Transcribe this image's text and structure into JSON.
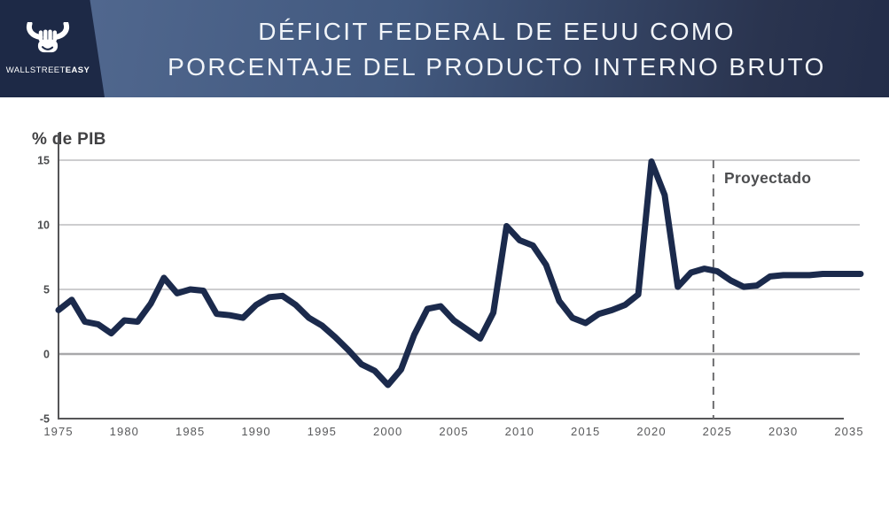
{
  "header": {
    "title_lines": [
      "DÉFICIT FEDERAL DE EEUU COMO",
      "PORCENTAJE DEL PRODUCTO INTERNO BRUTO"
    ],
    "background_gradient": [
      "#51688f",
      "#42597f",
      "#232d49"
    ],
    "text_color": "#f2f5f9",
    "logo": {
      "brand_regular": "WALLSTREET",
      "brand_bold": "EASY",
      "icon": "bull-fist-icon",
      "panel_color": "#1d2946"
    }
  },
  "chart_data": {
    "type": "line",
    "title": "",
    "xlabel": "",
    "ylabel": "% de PIB",
    "ylim": [
      -5,
      15
    ],
    "yticks": [
      15,
      10,
      5,
      0,
      -5
    ],
    "xlim": [
      1975,
      2036
    ],
    "xticks": [
      1975,
      1980,
      1985,
      1990,
      1995,
      2000,
      2005,
      2010,
      2015,
      2020,
      2025,
      2030,
      2035
    ],
    "grid": "horizontal",
    "legend": "none",
    "line_color": "#1b2a4c",
    "colors": {
      "grid": "#c6c6c8",
      "zero_line": "#a8a8aa",
      "axis": "#555557",
      "dash": "#6e6e70",
      "tick_text": "#58595b"
    },
    "projection": {
      "label": "Proyectado",
      "start_year": 2024.7,
      "line_style": "dashed"
    },
    "series": [
      {
        "name": "Déficit federal de EEUU (% del PIB)",
        "x": [
          1975,
          1976,
          1977,
          1978,
          1979,
          1980,
          1981,
          1982,
          1983,
          1984,
          1985,
          1986,
          1987,
          1988,
          1989,
          1990,
          1991,
          1992,
          1993,
          1994,
          1995,
          1996,
          1997,
          1998,
          1999,
          2000,
          2001,
          2002,
          2003,
          2004,
          2005,
          2006,
          2007,
          2008,
          2009,
          2010,
          2011,
          2012,
          2013,
          2014,
          2015,
          2016,
          2017,
          2018,
          2019,
          2020,
          2021,
          2022,
          2023,
          2024,
          2025,
          2026,
          2027,
          2028,
          2029,
          2030,
          2031,
          2032,
          2033,
          2034,
          2035
        ],
        "values": [
          3.4,
          4.2,
          2.5,
          2.3,
          1.6,
          2.6,
          2.5,
          3.9,
          5.9,
          4.7,
          5.0,
          4.9,
          3.1,
          3.0,
          2.8,
          3.8,
          4.4,
          4.5,
          3.8,
          2.8,
          2.2,
          1.3,
          0.3,
          -0.8,
          -1.3,
          -2.4,
          -1.2,
          1.5,
          3.5,
          3.7,
          2.6,
          1.9,
          1.2,
          3.2,
          9.9,
          8.8,
          8.4,
          6.9,
          4.1,
          2.8,
          2.4,
          3.1,
          3.4,
          3.8,
          4.6,
          14.9,
          12.3,
          5.2,
          6.3,
          6.6,
          6.4,
          5.7,
          5.2,
          5.3,
          6.0,
          6.1,
          6.1,
          6.1,
          6.2,
          6.2,
          6.2
        ]
      }
    ]
  }
}
